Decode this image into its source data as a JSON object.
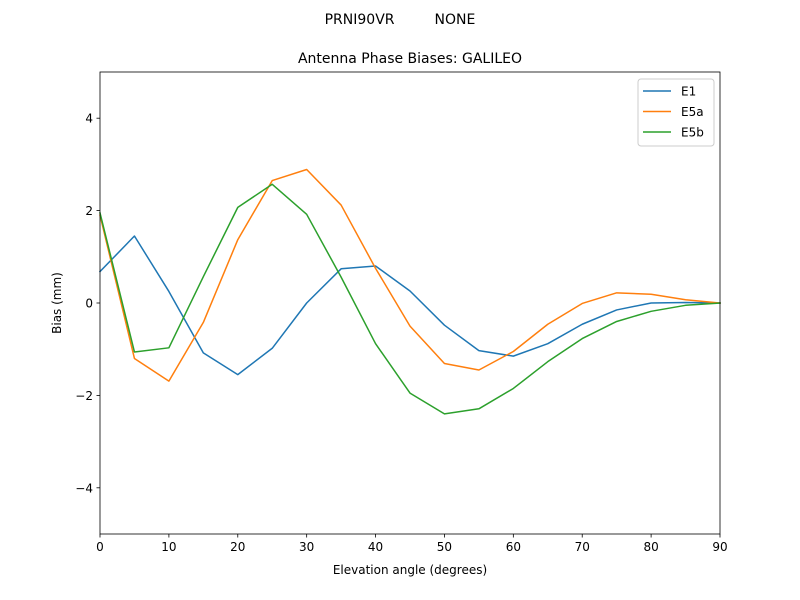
{
  "figure": {
    "suptitle": "PRNI90VR         NONE"
  },
  "chart_data": {
    "type": "line",
    "title": "Antenna Phase Biases: GALILEO",
    "xlabel": "Elevation angle (degrees)",
    "ylabel": "Bias (mm)",
    "xlim": [
      0,
      90
    ],
    "ylim": [
      -5,
      5
    ],
    "xticks": [
      0,
      10,
      20,
      30,
      40,
      50,
      60,
      70,
      80,
      90
    ],
    "yticks": [
      -4,
      -2,
      0,
      2,
      4
    ],
    "ytick_labels": [
      "−4",
      "−2",
      "0",
      "2",
      "4"
    ],
    "grid": false,
    "legend_position": "top-right",
    "x": [
      0,
      5,
      10,
      15,
      20,
      25,
      30,
      35,
      40,
      45,
      50,
      55,
      60,
      65,
      70,
      75,
      80,
      85,
      90
    ],
    "series": [
      {
        "name": "E1",
        "color": "#1f77b4",
        "values": [
          0.68,
          1.45,
          0.25,
          -1.08,
          -1.55,
          -0.98,
          0.0,
          0.74,
          0.8,
          0.26,
          -0.48,
          -1.03,
          -1.15,
          -0.88,
          -0.46,
          -0.15,
          0.0,
          0.01,
          0.0
        ]
      },
      {
        "name": "E5a",
        "color": "#ff7f0e",
        "values": [
          1.9,
          -1.2,
          -1.69,
          -0.42,
          1.37,
          2.65,
          2.89,
          2.12,
          0.75,
          -0.5,
          -1.31,
          -1.45,
          -1.05,
          -0.46,
          -0.01,
          0.22,
          0.19,
          0.07,
          0.0
        ]
      },
      {
        "name": "E5b",
        "color": "#2ca02c",
        "values": [
          1.95,
          -1.06,
          -0.97,
          0.57,
          2.07,
          2.57,
          1.92,
          0.56,
          -0.88,
          -1.95,
          -2.4,
          -2.29,
          -1.85,
          -1.27,
          -0.77,
          -0.4,
          -0.18,
          -0.05,
          0.0
        ]
      }
    ]
  }
}
